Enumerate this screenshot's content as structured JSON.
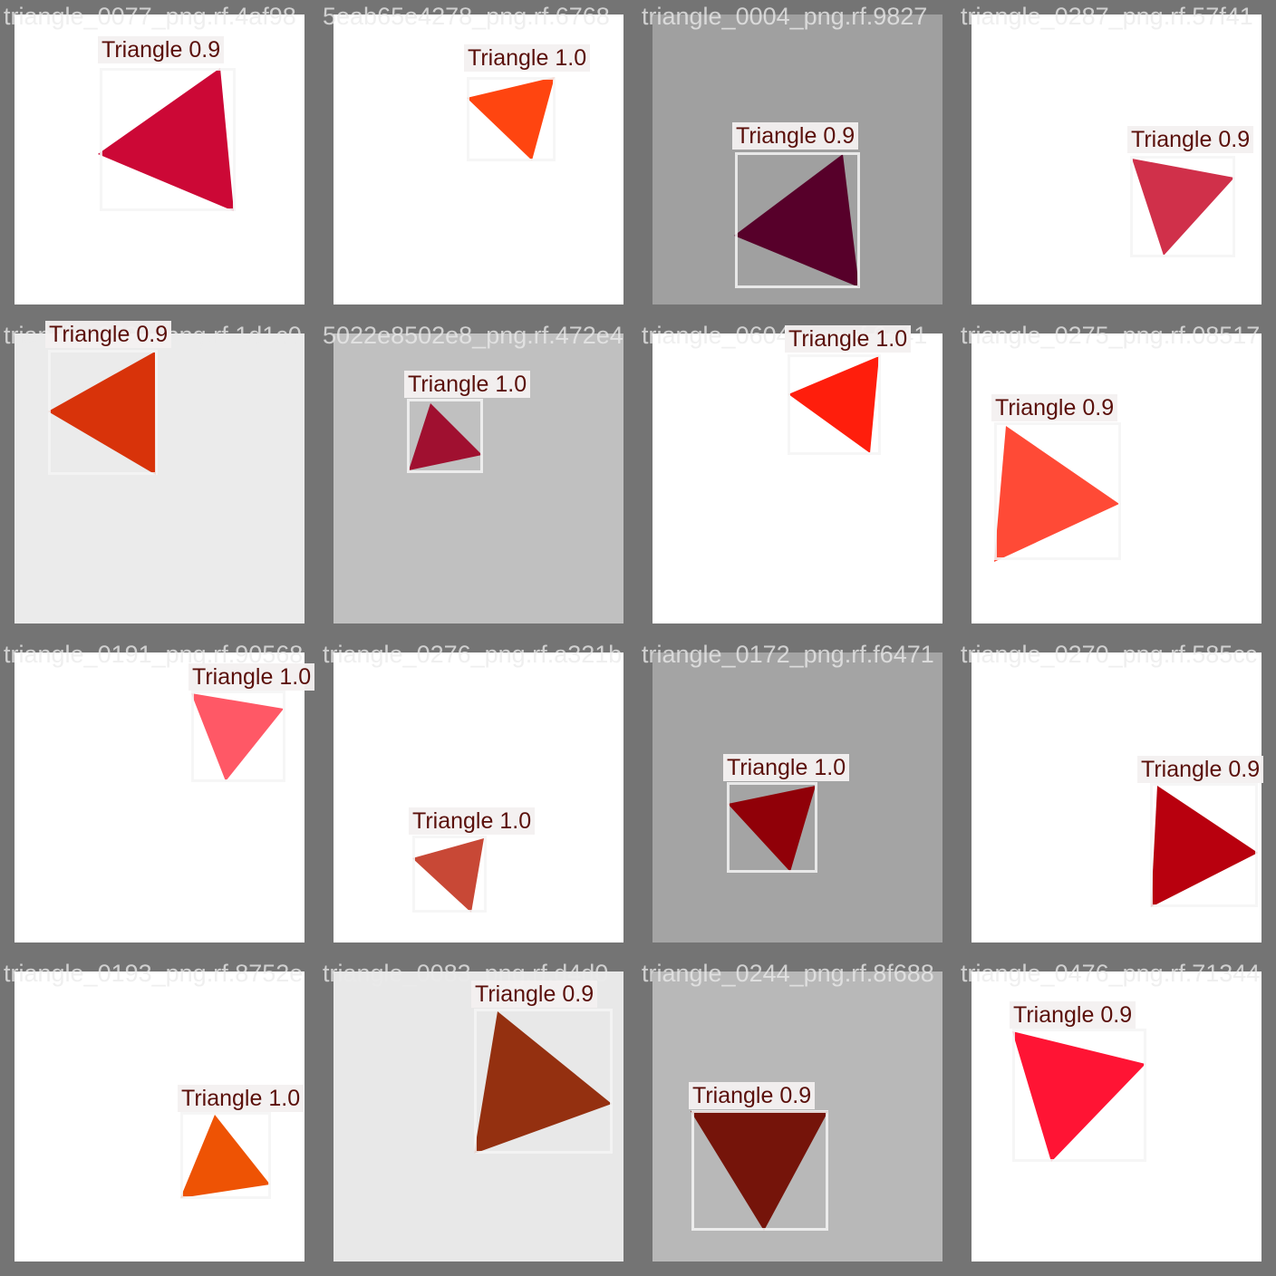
{
  "tiles": [
    {
      "filename": "triangle_0077_png.rf.4af98",
      "label": "Triangle 0.9",
      "bg": "#ffffff",
      "color": "#cc0836"
    },
    {
      "filename": "5eab65e4278_png.rf.6768",
      "label": "Triangle 1.0",
      "bg": "#ffffff",
      "color": "#ff4510"
    },
    {
      "filename": "triangle_0004_png.rf.9827",
      "label": "Triangle 0.9",
      "bg": "#a0a0a0",
      "color": "#57002a"
    },
    {
      "filename": "triangle_0287_png.rf.57f41",
      "label": "Triangle 0.9",
      "bg": "#ffffff",
      "color": "#d0304a"
    },
    {
      "filename": "triangle_0502_png.rf.1d1c0",
      "label": "Triangle 0.9",
      "bg": "#ebebeb",
      "color": "#d8330a"
    },
    {
      "filename": "5022e8502e8_png.rf.472e4",
      "label": "Triangle 1.0",
      "bg": "#c0c0c0",
      "color": "#a01030"
    },
    {
      "filename": "triangle_0604_png.rf.0e41",
      "label": "Triangle 1.0",
      "bg": "#ffffff",
      "color": "#ff1e0c"
    },
    {
      "filename": "triangle_0275_png.rf.08517",
      "label": "Triangle 0.9",
      "bg": "#ffffff",
      "color": "#ff4a36"
    },
    {
      "filename": "triangle_0191_png.rf.90568",
      "label": "Triangle 1.0",
      "bg": "#ffffff",
      "color": "#ff5866"
    },
    {
      "filename": "triangle_0276_png.rf.a321b",
      "label": "Triangle 1.0",
      "bg": "#ffffff",
      "color": "#c84836"
    },
    {
      "filename": "triangle_0172_png.rf.f6471",
      "label": "Triangle 1.0",
      "bg": "#a4a4a4",
      "color": "#900008"
    },
    {
      "filename": "triangle_0270_png.rf.585cc",
      "label": "Triangle 0.9",
      "bg": "#ffffff",
      "color": "#b8000e"
    },
    {
      "filename": "triangle_0193_png.rf.8752e",
      "label": "Triangle 1.0",
      "bg": "#ffffff",
      "color": "#ee5304"
    },
    {
      "filename": "triangle_0083_png.rf.d4d0",
      "label": "Triangle 0.9",
      "bg": "#e8e8e8",
      "color": "#943010"
    },
    {
      "filename": "triangle_0244_png.rf.8f688",
      "label": "Triangle 0.9",
      "bg": "#b8b8b8",
      "color": "#75140a"
    },
    {
      "filename": "triangle_0476_png.rf.71344",
      "label": "Triangle 0.9",
      "bg": "#ffffff",
      "color": "#ff1434"
    }
  ]
}
